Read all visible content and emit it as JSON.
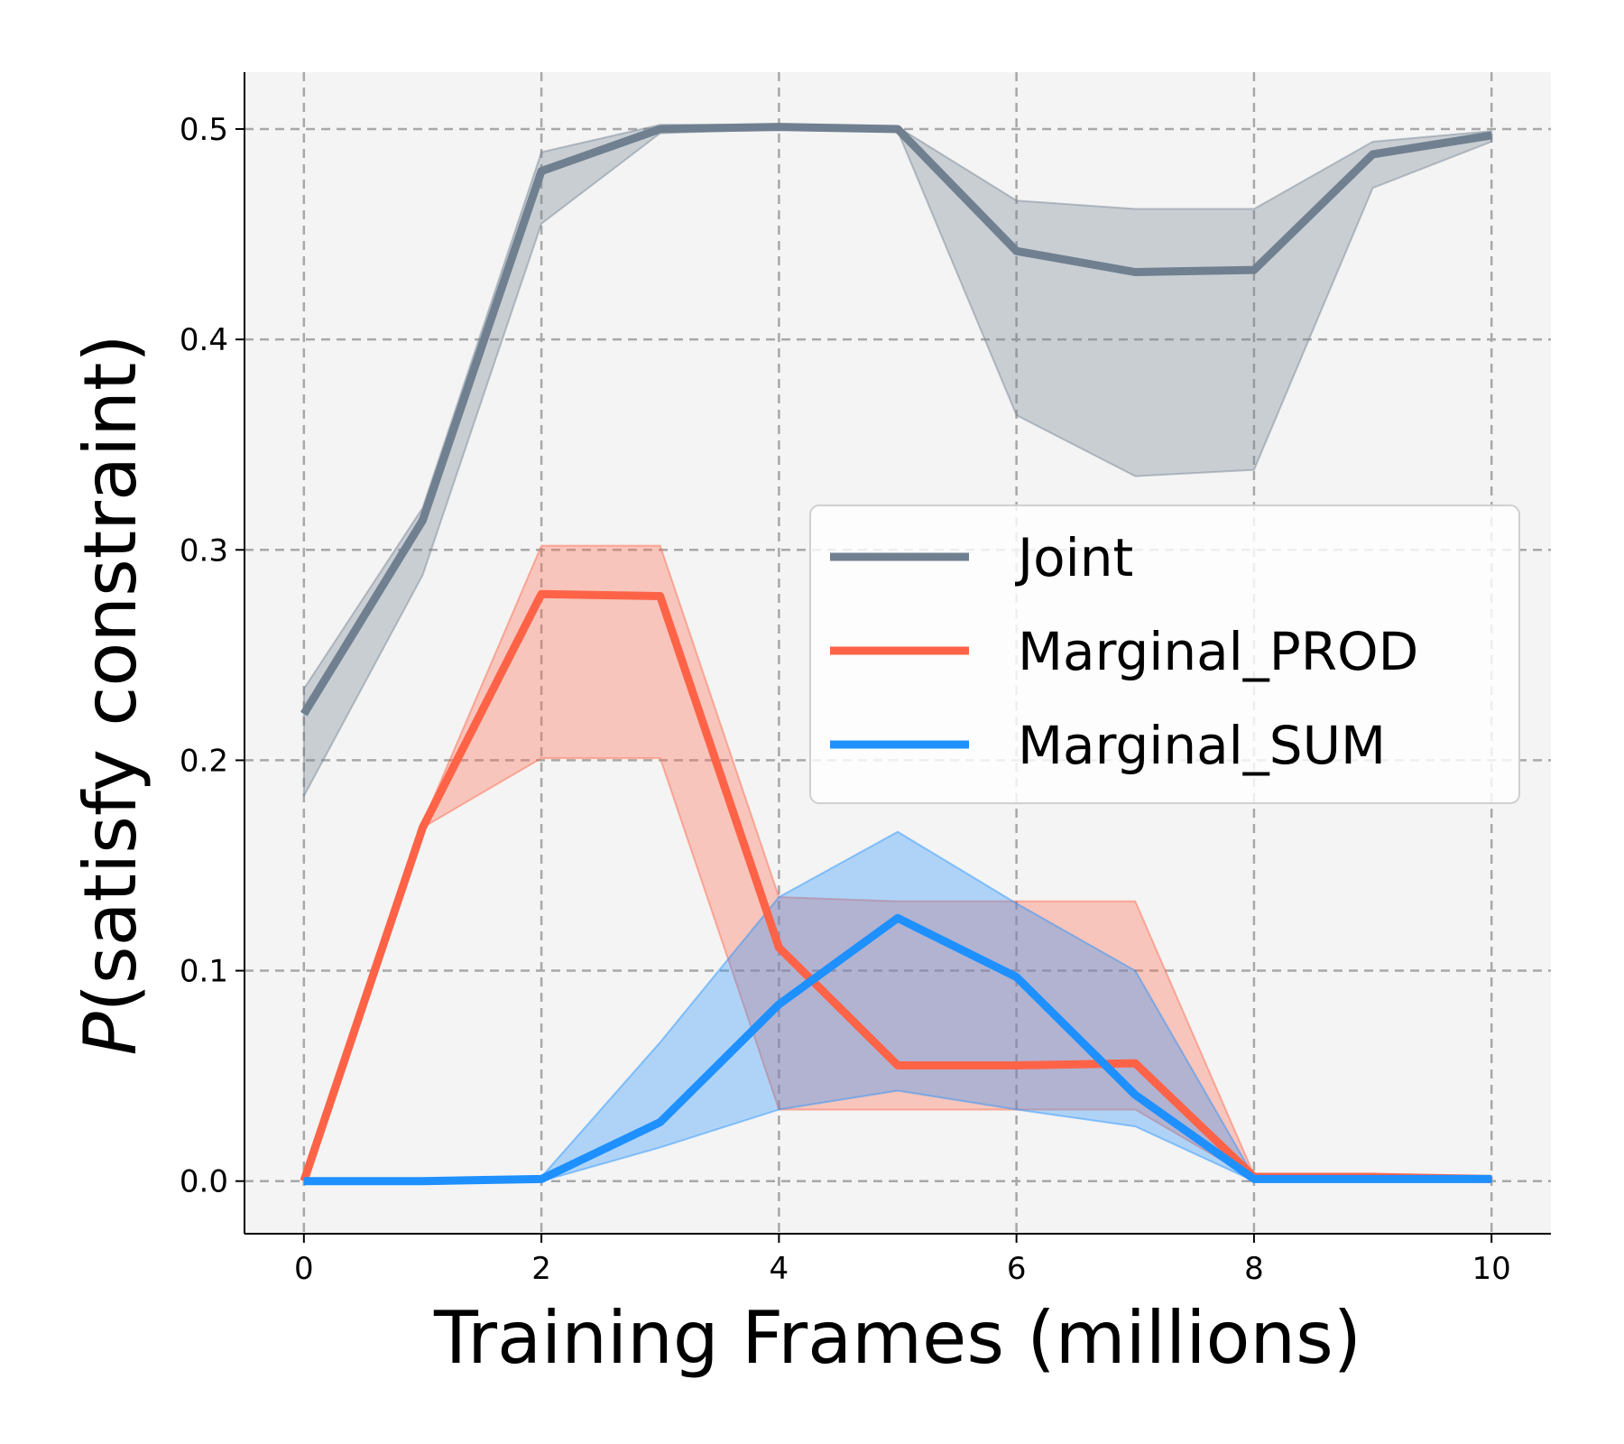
{
  "chart_data": {
    "type": "line",
    "xlabel": "Training Frames (millions)",
    "ylabel_prefix": "P",
    "ylabel_rest": "(satisfy constraint)",
    "xlim": [
      -0.5,
      10.5
    ],
    "ylim": [
      -0.025,
      0.527
    ],
    "xticks": [
      0,
      2,
      4,
      6,
      8,
      10
    ],
    "xtick_labels": [
      "0",
      "2",
      "4",
      "6",
      "8",
      "10"
    ],
    "yticks": [
      0.0,
      0.1,
      0.2,
      0.3,
      0.4,
      0.5
    ],
    "ytick_labels": [
      "0.0",
      "0.1",
      "0.2",
      "0.3",
      "0.4",
      "0.5"
    ],
    "grid": true,
    "legend_position": "center-right",
    "background": "#f4f4f4",
    "series": [
      {
        "name": "Joint",
        "color": "#708090",
        "x": [
          0,
          1,
          2,
          3,
          4,
          5,
          6,
          7,
          8,
          9,
          10
        ],
        "y": [
          0.222,
          0.314,
          0.48,
          0.5,
          0.501,
          0.5,
          0.442,
          0.432,
          0.433,
          0.488,
          0.497
        ],
        "lower": [
          0.183,
          0.288,
          0.455,
          0.498,
          0.5,
          0.499,
          0.364,
          0.335,
          0.338,
          0.472,
          0.494
        ],
        "upper": [
          0.234,
          0.32,
          0.489,
          0.502,
          0.502,
          0.501,
          0.466,
          0.462,
          0.462,
          0.494,
          0.499
        ]
      },
      {
        "name": "Marginal_PROD",
        "color": "#ff6347",
        "x": [
          0,
          1,
          2,
          3,
          4,
          5,
          6,
          7,
          8,
          9,
          10
        ],
        "y": [
          0.0,
          0.168,
          0.279,
          0.278,
          0.111,
          0.055,
          0.055,
          0.056,
          0.002,
          0.002,
          0.001
        ],
        "lower": [
          0.0,
          0.168,
          0.201,
          0.201,
          0.034,
          0.034,
          0.034,
          0.034,
          0.001,
          0.001,
          0.001
        ],
        "upper": [
          0.0,
          0.17,
          0.302,
          0.302,
          0.135,
          0.133,
          0.133,
          0.133,
          0.003,
          0.003,
          0.002
        ]
      },
      {
        "name": "Marginal_SUM",
        "color": "#1e90ff",
        "x": [
          0,
          1,
          2,
          3,
          4,
          5,
          6,
          7,
          8,
          9,
          10
        ],
        "y": [
          0.0,
          0.0,
          0.001,
          0.028,
          0.084,
          0.125,
          0.097,
          0.041,
          0.001,
          0.001,
          0.001
        ],
        "lower": [
          0.0,
          0.0,
          0.0,
          0.016,
          0.034,
          0.043,
          0.034,
          0.026,
          0.0,
          0.0,
          0.0
        ],
        "upper": [
          0.0,
          0.0,
          0.002,
          0.066,
          0.135,
          0.166,
          0.132,
          0.1,
          0.002,
          0.002,
          0.002
        ]
      }
    ]
  }
}
